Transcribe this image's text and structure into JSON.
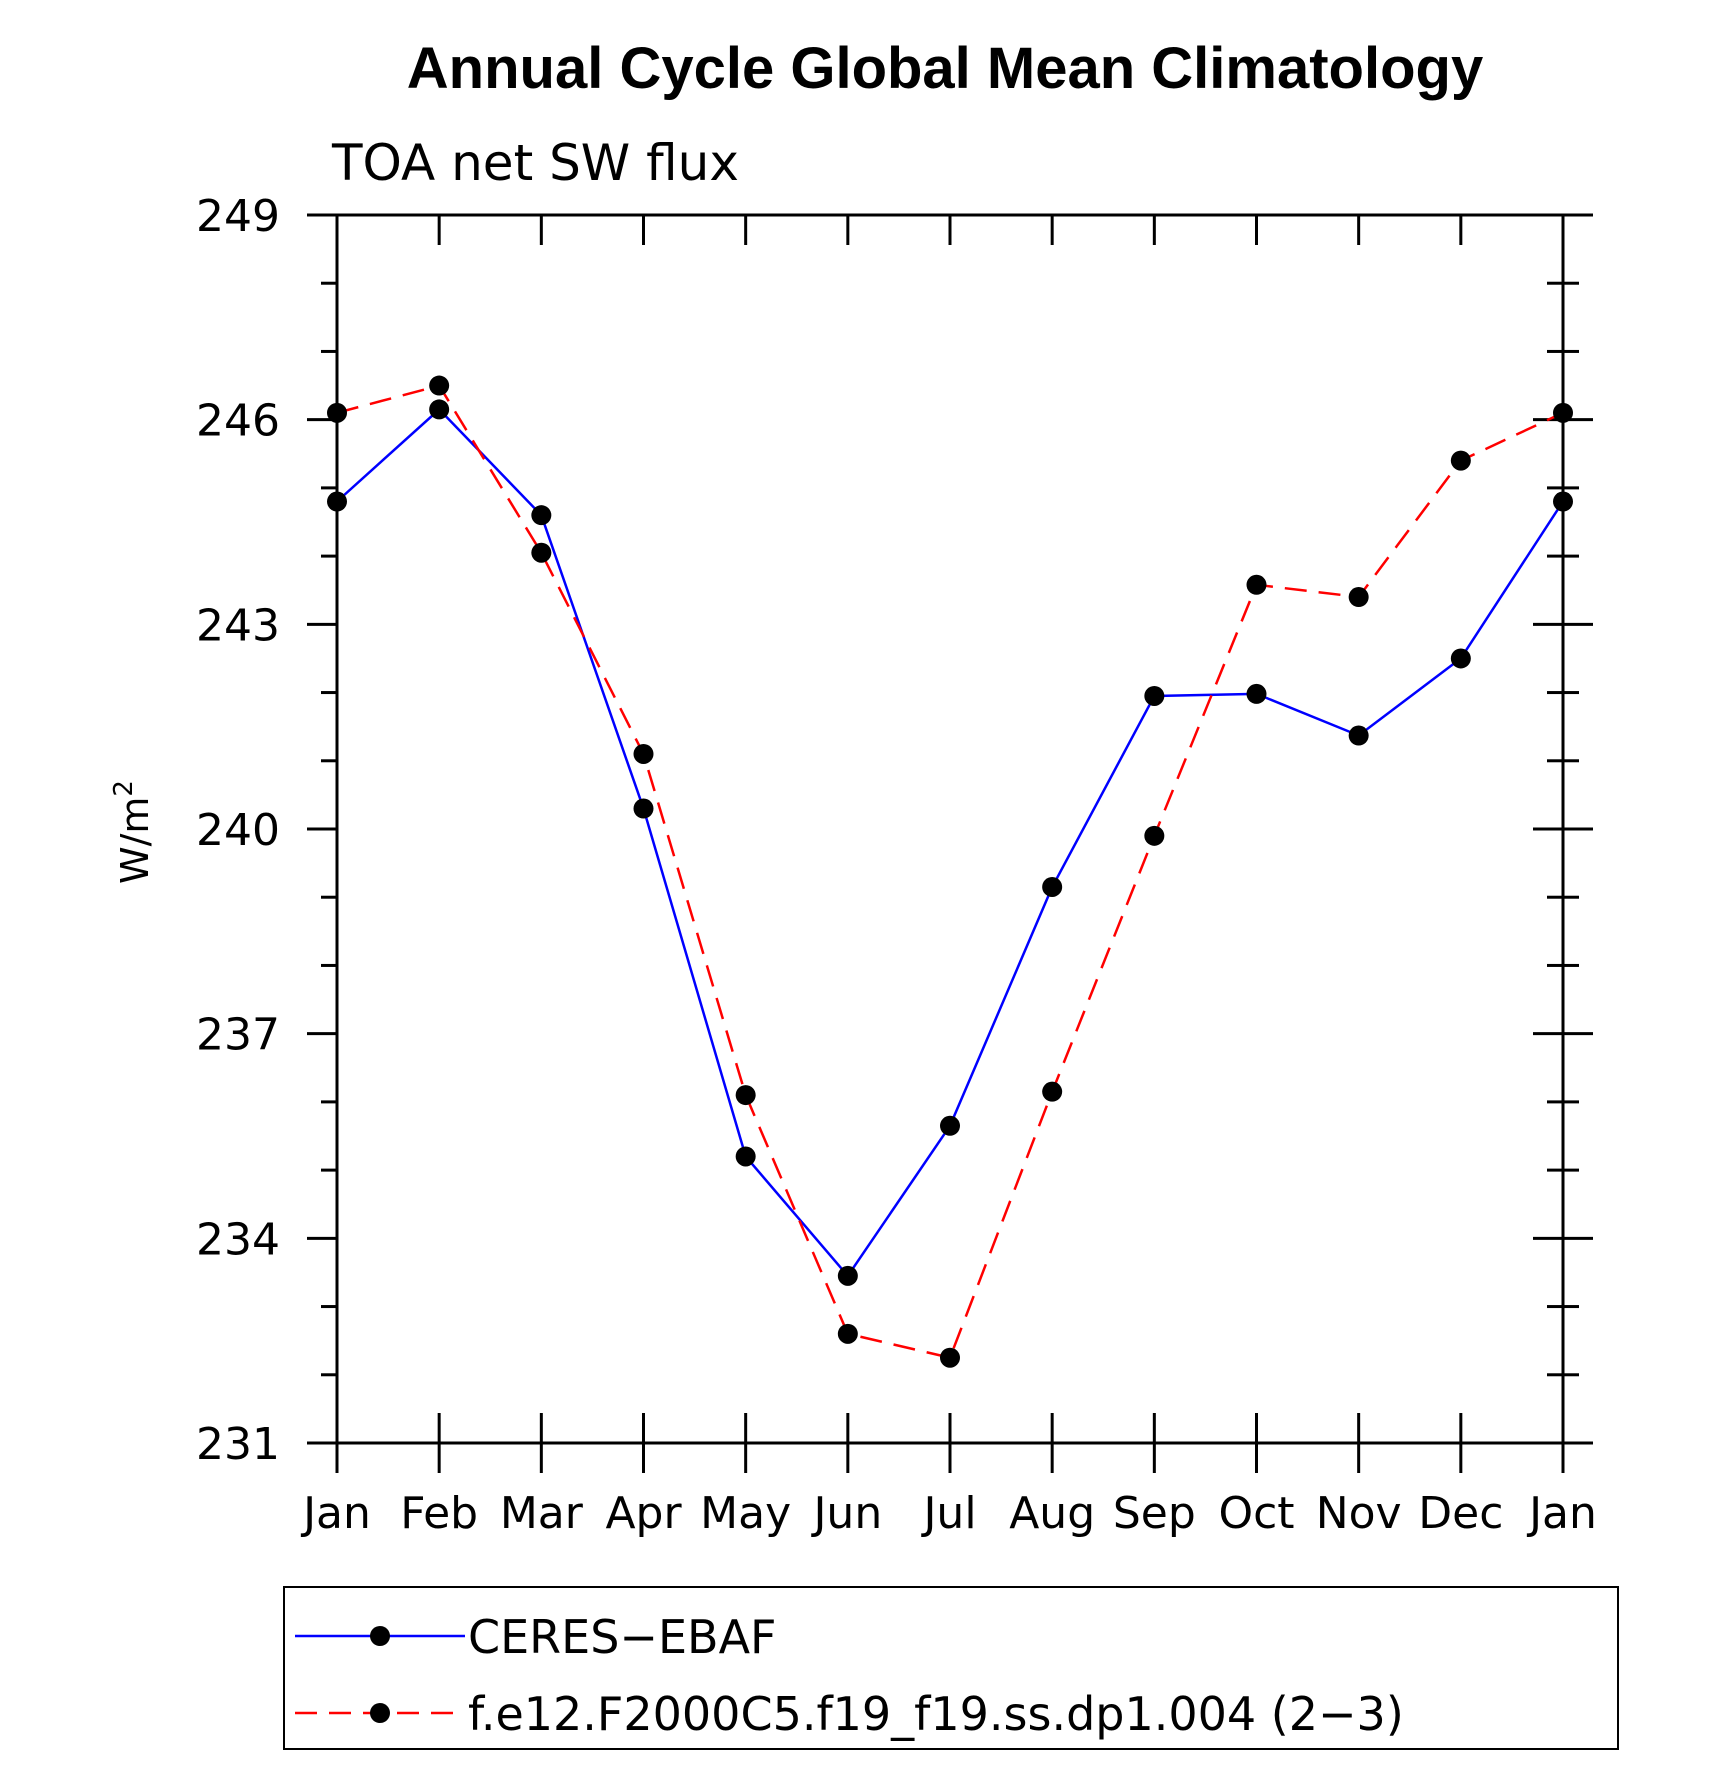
{
  "chart_data": {
    "type": "line",
    "title": "Annual Cycle Global Mean Climatology",
    "subtitle": "TOA net SW flux",
    "ylabel": "W/m",
    "ylabel_superscript": "2",
    "xlabel": "",
    "categories": [
      "Jan",
      "Feb",
      "Mar",
      "Apr",
      "May",
      "Jun",
      "Jul",
      "Aug",
      "Sep",
      "Oct",
      "Nov",
      "Dec",
      "Jan"
    ],
    "ylim": [
      231,
      249
    ],
    "yticks": [
      "249",
      "246",
      "243",
      "240",
      "237",
      "234",
      "231"
    ],
    "grid": false,
    "legend_position": "bottom",
    "series": [
      {
        "name": "CERES−EBAF",
        "color": "#0000ff",
        "dash": "solid",
        "marker": "filled-circle",
        "values": [
          244.8,
          246.15,
          244.6,
          240.3,
          235.2,
          233.45,
          235.65,
          239.15,
          241.95,
          241.98,
          241.37,
          242.5,
          244.8
        ]
      },
      {
        "name": "f.e12.F2000C5.f19_f19.ss.dp1.004 (2−3)",
        "color": "#ff0000",
        "dash": "dashed",
        "marker": "filled-circle",
        "values": [
          246.1,
          246.5,
          244.05,
          241.1,
          236.1,
          232.6,
          232.25,
          236.15,
          239.9,
          243.58,
          243.4,
          245.4,
          246.1
        ]
      }
    ]
  }
}
